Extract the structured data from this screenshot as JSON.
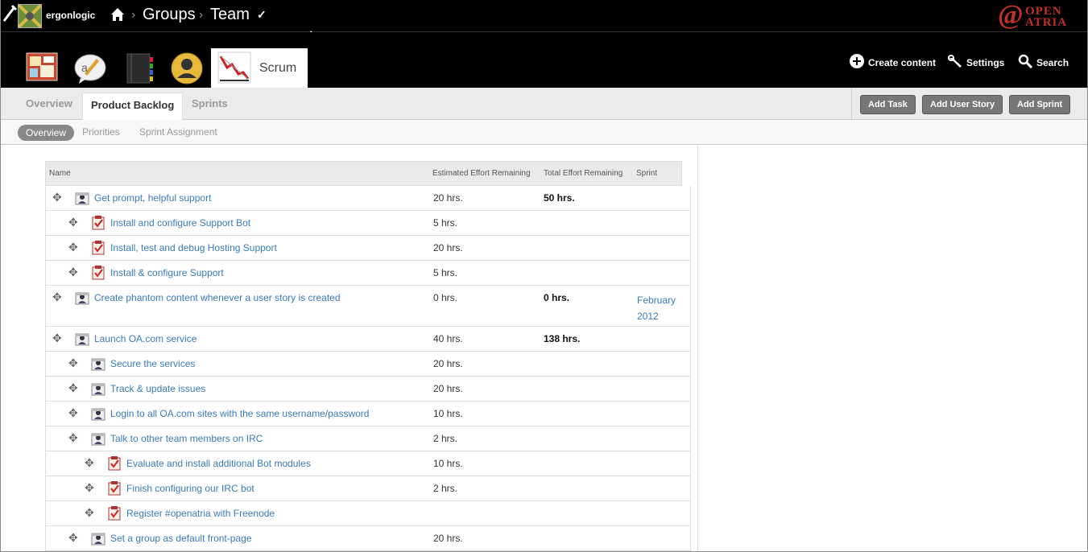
{
  "header": {
    "site_name": "ergonlogic",
    "breadcrumbs": [
      "Groups",
      "Team"
    ],
    "checkmark": "✓",
    "brand": {
      "at": "@",
      "line1": "OPEN",
      "line2": "ATRIA",
      "color": "#c0302a"
    }
  },
  "apps": {
    "active_label": "Scrum",
    "icons": [
      "bulletin-board-icon",
      "discussion-icon",
      "notebook-icon",
      "members-icon",
      "scrum-icon"
    ]
  },
  "top_actions": {
    "create": "Create content",
    "settings": "Settings",
    "search": "Search"
  },
  "tabs": {
    "overview": "Overview",
    "backlog": "Product Backlog",
    "sprints": "Sprints"
  },
  "actions": {
    "add_task": "Add Task",
    "add_story": "Add User Story",
    "add_sprint": "Add Sprint"
  },
  "subtabs": {
    "overview": "Overview",
    "priorities": "Priorities",
    "assignment": "Sprint Assignment"
  },
  "table": {
    "headers": {
      "name": "Name",
      "estimated": "Estimated Effort Remaining",
      "total": "Total Effort Remaining",
      "sprint": "Sprint"
    },
    "rows": [
      {
        "name": "Get prompt, helpful support",
        "est": "20 hrs.",
        "total": "50 hrs.",
        "sprint": "",
        "kind": "story"
      },
      {
        "name": "Install and configure Support Bot",
        "est": "5 hrs.",
        "total": "",
        "sprint": "",
        "kind": "task"
      },
      {
        "name": "Install, test and debug Hosting Support",
        "est": "20 hrs.",
        "total": "",
        "sprint": "",
        "kind": "task"
      },
      {
        "name": "Install & configure Support",
        "est": "5 hrs.",
        "total": "",
        "sprint": "",
        "kind": "task"
      },
      {
        "name": "Create phantom content whenever a user story is created",
        "est": "0 hrs.",
        "total": "0 hrs.",
        "sprint": "February 2012",
        "kind": "story"
      },
      {
        "name": "Launch OA.com service",
        "est": "40 hrs.",
        "total": "138 hrs.",
        "sprint": "",
        "kind": "story"
      },
      {
        "name": "Secure the services",
        "est": "20 hrs.",
        "total": "",
        "sprint": "",
        "kind": "story"
      },
      {
        "name": "Track & update issues",
        "est": "20 hrs.",
        "total": "",
        "sprint": "",
        "kind": "story"
      },
      {
        "name": "Login to all OA.com sites with the same username/password",
        "est": "10 hrs.",
        "total": "",
        "sprint": "",
        "kind": "story"
      },
      {
        "name": "Talk to other team members on IRC",
        "est": "2 hrs.",
        "total": "",
        "sprint": "",
        "kind": "story"
      },
      {
        "name": "Evaluate and install additional Bot modules",
        "est": "10 hrs.",
        "total": "",
        "sprint": "",
        "kind": "task"
      },
      {
        "name": "Finish configuring our IRC bot",
        "est": "2 hrs.",
        "total": "",
        "sprint": "",
        "kind": "task"
      },
      {
        "name": "Register #openatria with Freenode",
        "est": "",
        "total": "",
        "sprint": "",
        "kind": "task"
      },
      {
        "name": "Set a group as default front-page",
        "est": "20 hrs.",
        "total": "",
        "sprint": "",
        "kind": "story"
      }
    ]
  }
}
